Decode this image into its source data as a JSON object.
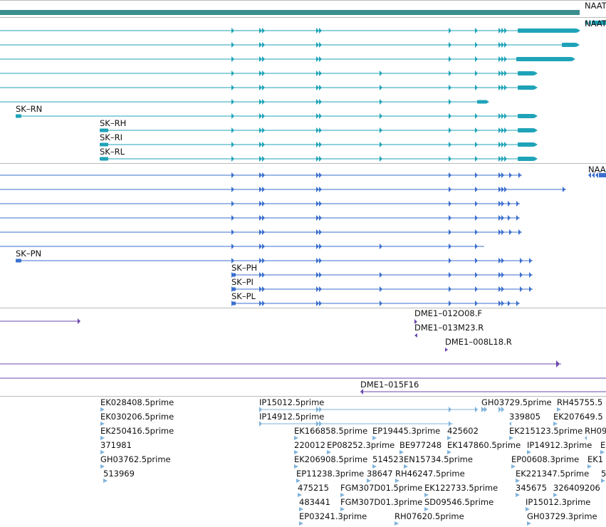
{
  "colors": {
    "teal": "#1FA3B8",
    "teal_dark": "#3A8E8E",
    "blue": "#3B6FCE",
    "purple": "#6A48AE",
    "light_blue": "#7FB3DC",
    "separator": "#BBBBBB"
  },
  "teal_section": {
    "top_label": "NAAT",
    "right_labels": [
      "NAAT"
    ],
    "transcript_labels": [
      "SK–RN",
      "SK–RH",
      "SK–RI",
      "SK–RL"
    ]
  },
  "blue_section": {
    "right_label": "NAA",
    "transcript_labels": [
      "SK–PN",
      "SK–PH",
      "SK–PI",
      "SK–PL"
    ]
  },
  "purple_section": {
    "labels": [
      "DME1–012O08.F",
      "DME1–013M23.R",
      "DME1–008L18.R",
      "DME1–015F16"
    ]
  },
  "est_section": {
    "labels": [
      "EK028408.5prime",
      "EK030206.5prime",
      "EK250416.5prime",
      "371981",
      "GH03762.5prime",
      "513969",
      "IP15012.5prime",
      "IP14912.5prime",
      "EK166858.5prime",
      "EP19445.3prime",
      "425602",
      "220012",
      "EP08252.3prime",
      "BE977248",
      "EK147860.5prime",
      "EK206908.5prime",
      "514523",
      "EN15734.5prime",
      "EP11238.3prime",
      "38647",
      "RH46247.5prime",
      "475215",
      "FGM307D01.5prime",
      "EK122733.5prime",
      "483441",
      "FGM307D01.3prime",
      "SD09546.5prime",
      "EP03241.3prime",
      "RH07620.5prime",
      "GH03729.5prime",
      "RH45755.5",
      "339805",
      "EK207649.5",
      "EK215123.5prime",
      "RH09",
      "IP14912.3prime",
      "E",
      "EP00608.3prime",
      "EK1",
      "EK221347.5prime",
      "5",
      "345675",
      "326409206",
      "IP15012.3prime",
      "GH03729.3prime"
    ]
  }
}
